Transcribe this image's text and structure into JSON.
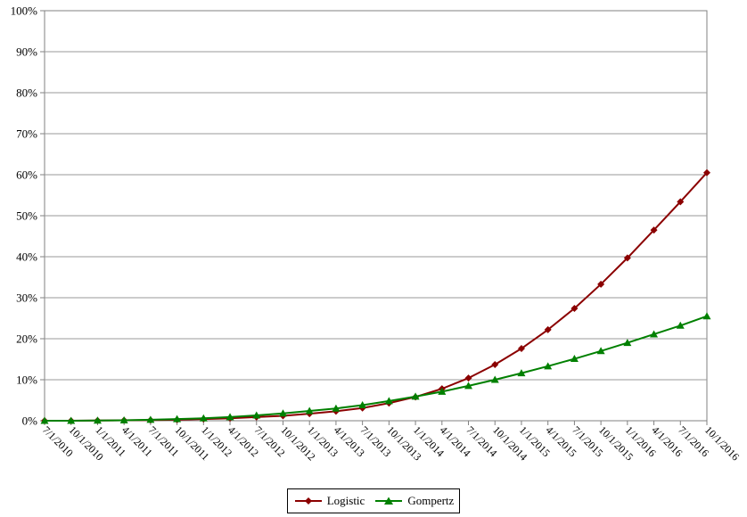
{
  "chart_data": {
    "type": "line",
    "title": "",
    "xlabel": "",
    "ylabel": "",
    "ylim": [
      0,
      100
    ],
    "y_ticks": [
      "0%",
      "10%",
      "20%",
      "30%",
      "40%",
      "50%",
      "60%",
      "70%",
      "80%",
      "90%",
      "100%"
    ],
    "grid": "horizontal",
    "legend_position": "bottom",
    "categories": [
      "7/1/2010",
      "10/1/2010",
      "1/1/2011",
      "4/1/2011",
      "7/1/2011",
      "10/1/2011",
      "1/1/2012",
      "4/1/2012",
      "7/1/2012",
      "10/1/2012",
      "1/1/2013",
      "4/1/2013",
      "7/1/2013",
      "10/1/2013",
      "1/1/2014",
      "4/1/2014",
      "7/1/2014",
      "10/1/2014",
      "1/1/2015",
      "4/1/2015",
      "7/1/2015",
      "10/1/2015",
      "1/1/2016",
      "4/1/2016",
      "7/1/2016",
      "10/1/2016"
    ],
    "series": [
      {
        "name": "Logistic",
        "color": "#8b0000",
        "marker": "diamond",
        "values": [
          0.0,
          0.0,
          0.05,
          0.1,
          0.15,
          0.25,
          0.4,
          0.6,
          0.9,
          1.2,
          1.7,
          2.3,
          3.1,
          4.3,
          5.8,
          7.8,
          10.4,
          13.7,
          17.6,
          22.2,
          27.4,
          33.3,
          39.7,
          46.5,
          53.4,
          60.5
        ]
      },
      {
        "name": "Gompertz",
        "color": "#008000",
        "marker": "triangle",
        "values": [
          0.0,
          0.0,
          0.05,
          0.1,
          0.25,
          0.4,
          0.6,
          0.9,
          1.3,
          1.8,
          2.4,
          3.0,
          3.8,
          4.8,
          5.9,
          7.1,
          8.5,
          10.0,
          11.6,
          13.3,
          15.1,
          17.0,
          19.0,
          21.1,
          23.2,
          25.5
        ]
      }
    ]
  }
}
